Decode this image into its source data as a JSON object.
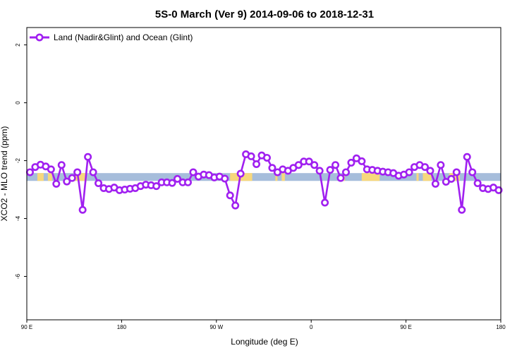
{
  "chart_data": {
    "type": "line",
    "title": "5S-0 March (Ver 9)   2014-09-06 to 2018-12-31",
    "xlabel": "Longitude (deg E)",
    "ylabel": "XCO2 - MLO trend (ppm)",
    "xlim": [
      90,
      540
    ],
    "ylim": [
      -7.5,
      2.6
    ],
    "x_ticks": [
      {
        "value": 90,
        "label": "90 E"
      },
      {
        "value": 180,
        "label": "180"
      },
      {
        "value": 270,
        "label": "90 W"
      },
      {
        "value": 360,
        "label": "0"
      },
      {
        "value": 450,
        "label": "90 E"
      },
      {
        "value": 540,
        "label": "180"
      }
    ],
    "y_ticks": [
      {
        "value": 2,
        "label": "2"
      },
      {
        "value": 0,
        "label": "0"
      },
      {
        "value": -2,
        "label": "-2"
      },
      {
        "value": -4,
        "label": "-4"
      },
      {
        "value": -6,
        "label": "-6"
      }
    ],
    "grid": false,
    "legend_position": "top-left",
    "band": {
      "y_top": -2.43,
      "y_bottom": -2.7,
      "ocean_color": "#a6bddb",
      "land_color": "#f7d87c"
    },
    "land_segments": [
      [
        100,
        106
      ],
      [
        110,
        114
      ],
      [
        135,
        144
      ],
      [
        143,
        147
      ],
      [
        283,
        304
      ],
      [
        326,
        328
      ],
      [
        332,
        335
      ],
      [
        390,
        392
      ],
      [
        408,
        425
      ],
      [
        460,
        462
      ],
      [
        466,
        474
      ],
      [
        491,
        501
      ]
    ],
    "series": [
      {
        "name": "Land (Nadir&Glint) and Ocean (Glint)",
        "color": "#a020f0",
        "points": [
          [
            93,
            -2.4
          ],
          [
            98,
            -2.22
          ],
          [
            103,
            -2.14
          ],
          [
            108,
            -2.2
          ],
          [
            113,
            -2.3
          ],
          [
            118,
            -2.8
          ],
          [
            123,
            -2.15
          ],
          [
            128,
            -2.72
          ],
          [
            133,
            -2.6
          ],
          [
            138,
            -2.4
          ],
          [
            143,
            -3.7
          ],
          [
            148,
            -1.87
          ],
          [
            153,
            -2.4
          ],
          [
            158,
            -2.78
          ],
          [
            163,
            -2.95
          ],
          [
            168,
            -2.98
          ],
          [
            173,
            -2.93
          ],
          [
            178,
            -3.02
          ],
          [
            183,
            -3.0
          ],
          [
            188,
            -2.97
          ],
          [
            193,
            -2.95
          ],
          [
            198,
            -2.88
          ],
          [
            203,
            -2.83
          ],
          [
            208,
            -2.85
          ],
          [
            213,
            -2.88
          ],
          [
            218,
            -2.75
          ],
          [
            223,
            -2.75
          ],
          [
            228,
            -2.77
          ],
          [
            233,
            -2.63
          ],
          [
            238,
            -2.75
          ],
          [
            243,
            -2.75
          ],
          [
            248,
            -2.4
          ],
          [
            253,
            -2.55
          ],
          [
            258,
            -2.48
          ],
          [
            263,
            -2.5
          ],
          [
            268,
            -2.58
          ],
          [
            273,
            -2.55
          ],
          [
            278,
            -2.62
          ],
          [
            283,
            -3.2
          ],
          [
            288,
            -3.55
          ],
          [
            293,
            -2.45
          ],
          [
            298,
            -1.78
          ],
          [
            303,
            -1.85
          ],
          [
            308,
            -2.12
          ],
          [
            313,
            -1.82
          ],
          [
            318,
            -1.9
          ],
          [
            323,
            -2.25
          ],
          [
            328,
            -2.4
          ],
          [
            333,
            -2.3
          ],
          [
            338,
            -2.35
          ],
          [
            343,
            -2.25
          ],
          [
            348,
            -2.15
          ],
          [
            353,
            -2.03
          ],
          [
            358,
            -2.03
          ],
          [
            363,
            -2.15
          ],
          [
            368,
            -2.35
          ],
          [
            373,
            -3.45
          ],
          [
            378,
            -2.32
          ],
          [
            383,
            -2.15
          ],
          [
            388,
            -2.6
          ],
          [
            393,
            -2.4
          ],
          [
            398,
            -2.07
          ],
          [
            403,
            -1.92
          ],
          [
            408,
            -2.02
          ],
          [
            413,
            -2.3
          ],
          [
            418,
            -2.32
          ],
          [
            423,
            -2.35
          ],
          [
            428,
            -2.38
          ],
          [
            433,
            -2.4
          ],
          [
            438,
            -2.43
          ],
          [
            443,
            -2.52
          ],
          [
            448,
            -2.48
          ],
          [
            453,
            -2.4
          ],
          [
            458,
            -2.22
          ],
          [
            463,
            -2.15
          ],
          [
            468,
            -2.22
          ],
          [
            473,
            -2.35
          ],
          [
            478,
            -2.8
          ],
          [
            483,
            -2.15
          ],
          [
            488,
            -2.73
          ],
          [
            493,
            -2.63
          ],
          [
            498,
            -2.4
          ],
          [
            503,
            -3.7
          ],
          [
            508,
            -1.87
          ],
          [
            513,
            -2.4
          ],
          [
            518,
            -2.78
          ],
          [
            523,
            -2.95
          ],
          [
            528,
            -2.98
          ],
          [
            533,
            -2.93
          ],
          [
            538,
            -3.02
          ]
        ]
      }
    ]
  }
}
